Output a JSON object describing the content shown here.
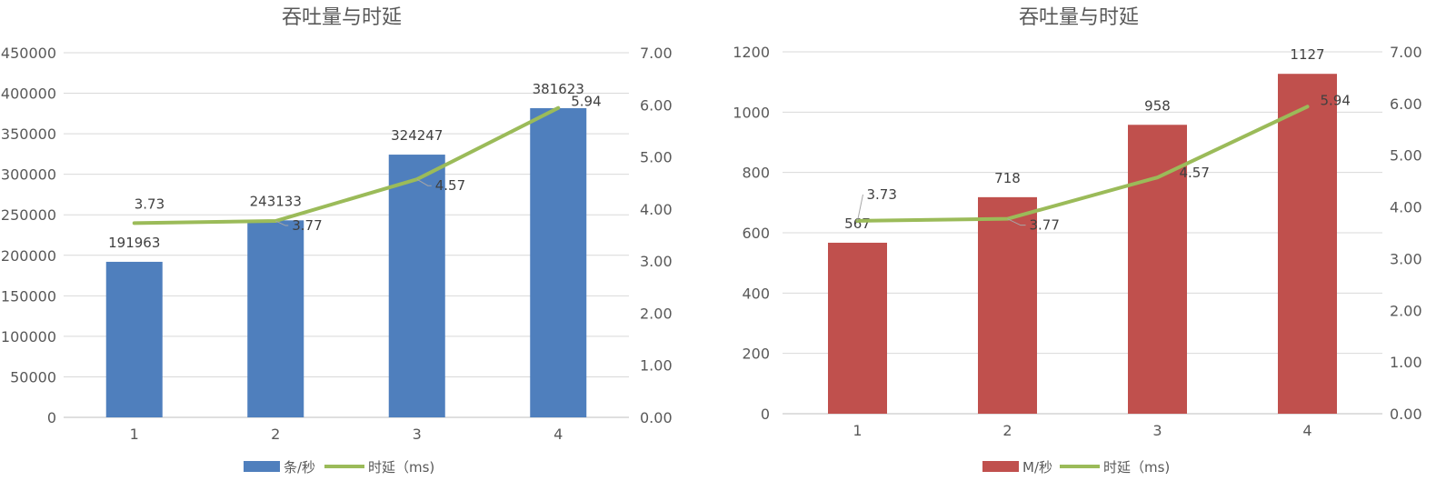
{
  "chart_data": [
    {
      "type": "bar",
      "title": "吞吐量与时延",
      "categories": [
        "1",
        "2",
        "3",
        "4"
      ],
      "bar_series": {
        "name": "条/秒",
        "values": [
          191963,
          243133,
          324247,
          381623
        ],
        "labels": [
          "191963",
          "243133",
          "324247",
          "381623"
        ],
        "color": "#4F7FBD"
      },
      "line_series": {
        "name": "时延（ms)",
        "values": [
          3.73,
          3.77,
          4.57,
          5.94
        ],
        "labels": [
          "3.73",
          "3.77",
          "4.57",
          "5.94"
        ],
        "color": "#9BBB59"
      },
      "y_left": {
        "range": [
          0,
          450000
        ],
        "ticks": [
          "0",
          "50000",
          "100000",
          "150000",
          "200000",
          "250000",
          "300000",
          "350000",
          "400000",
          "450000"
        ]
      },
      "y_right": {
        "range": [
          0,
          7
        ],
        "ticks": [
          "0.00",
          "1.00",
          "2.00",
          "3.00",
          "4.00",
          "5.00",
          "6.00",
          "7.00"
        ]
      },
      "grid": true,
      "legend_position": "bottom"
    },
    {
      "type": "bar",
      "title": "吞吐量与时延",
      "categories": [
        "1",
        "2",
        "3",
        "4"
      ],
      "bar_series": {
        "name": "M/秒",
        "values": [
          567,
          718,
          958,
          1127
        ],
        "labels": [
          "567",
          "718",
          "958",
          "1127"
        ],
        "color": "#C0504D"
      },
      "line_series": {
        "name": "时延（ms)",
        "values": [
          3.73,
          3.77,
          4.57,
          5.94
        ],
        "labels": [
          "3.73",
          "3.77",
          "4.57",
          "5.94"
        ],
        "color": "#9BBB59"
      },
      "y_left": {
        "range": [
          0,
          1200
        ],
        "ticks": [
          "0",
          "200",
          "400",
          "600",
          "800",
          "1000",
          "1200"
        ]
      },
      "y_right": {
        "range": [
          0,
          7
        ],
        "ticks": [
          "0.00",
          "1.00",
          "2.00",
          "3.00",
          "4.00",
          "5.00",
          "6.00",
          "7.00"
        ]
      },
      "grid": true,
      "legend_position": "bottom"
    }
  ]
}
